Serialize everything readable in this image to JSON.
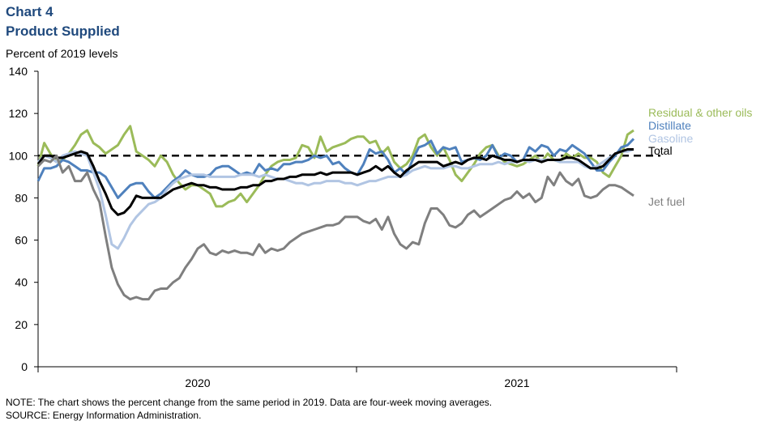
{
  "chart_data": {
    "type": "line",
    "title": "Chart 4",
    "subtitle": "Product Supplied",
    "ylabel": "Percent of 2019 levels",
    "note": "NOTE: The chart shows the percent change from the same period in 2019. Data are four-week  moving averages.",
    "source": "SOURCE: Energy Information  Administration.",
    "categories": [
      null,
      null,
      null,
      null,
      null,
      null,
      null,
      null,
      null,
      null,
      null,
      null,
      null,
      null,
      null,
      null,
      null,
      null,
      null,
      null,
      null,
      null,
      null,
      null,
      null,
      null,
      "2020",
      null,
      null,
      null,
      null,
      null,
      null,
      null,
      null,
      null,
      null,
      null,
      null,
      null,
      null,
      null,
      null,
      null,
      null,
      null,
      null,
      null,
      null,
      null,
      null,
      null,
      null,
      null,
      null,
      null,
      null,
      null,
      null,
      null,
      null,
      null,
      null,
      null,
      null,
      null,
      null,
      null,
      null,
      null,
      null,
      null,
      null,
      null,
      null,
      null,
      null,
      null,
      "2021",
      null,
      null,
      null,
      null,
      null,
      null,
      null,
      null,
      null,
      null,
      null,
      null,
      null,
      null,
      null,
      null,
      null,
      null,
      null
    ],
    "ylim": [
      0,
      140
    ],
    "yticks": [
      0,
      20,
      40,
      60,
      80,
      100,
      120,
      140
    ],
    "reference_line": 100,
    "series": [
      {
        "name": "Residual & other oils",
        "color": "#9bbb59",
        "values": [
          95,
          106,
          101,
          97,
          98,
          101,
          105,
          110,
          112,
          106,
          104,
          101,
          103,
          105,
          110,
          114,
          102,
          100,
          98,
          95,
          100,
          97,
          91,
          87,
          84,
          86,
          86,
          84,
          82,
          76,
          76,
          78,
          79,
          82,
          78,
          82,
          86,
          91,
          95,
          97,
          98,
          98,
          99,
          105,
          104,
          99,
          109,
          102,
          104,
          105,
          106,
          108,
          109,
          109,
          106,
          107,
          101,
          104,
          97,
          94,
          96,
          100,
          108,
          110,
          104,
          100,
          104,
          98,
          91,
          88,
          92,
          96,
          101,
          104,
          105,
          100,
          97,
          96,
          95,
          96,
          98,
          100,
          97,
          101,
          98,
          97,
          101,
          99,
          101,
          99,
          99,
          97,
          92,
          90,
          95,
          100,
          110,
          112
        ]
      },
      {
        "name": "Distillate",
        "color": "#4f81bd",
        "values": [
          88,
          94,
          94,
          95,
          98,
          97,
          95,
          93,
          93,
          92,
          92,
          90,
          85,
          80,
          83,
          86,
          87,
          87,
          83,
          80,
          82,
          85,
          88,
          90,
          93,
          91,
          90,
          90,
          91,
          94,
          95,
          95,
          93,
          91,
          92,
          91,
          96,
          93,
          94,
          93,
          96,
          96,
          97,
          97,
          98,
          100,
          99,
          100,
          96,
          97,
          94,
          92,
          91,
          96,
          103,
          101,
          102,
          98,
          92,
          94,
          91,
          98,
          104,
          105,
          107,
          101,
          104,
          103,
          104,
          97,
          98,
          99,
          98,
          100,
          105,
          99,
          101,
          100,
          97,
          98,
          104,
          102,
          105,
          104,
          100,
          103,
          102,
          105,
          103,
          101,
          97,
          93,
          93,
          97,
          100,
          104,
          105,
          108
        ]
      },
      {
        "name": "Gasoline",
        "color": "#b1c5e3",
        "values": [
          97,
          100,
          99,
          97,
          100,
          101,
          102,
          101,
          100,
          92,
          84,
          72,
          58,
          56,
          61,
          67,
          71,
          74,
          77,
          78,
          80,
          84,
          87,
          89,
          90,
          91,
          91,
          91,
          90,
          90,
          90,
          90,
          90,
          91,
          91,
          91,
          90,
          91,
          90,
          89,
          89,
          88,
          87,
          87,
          86,
          87,
          87,
          88,
          88,
          88,
          87,
          87,
          86,
          87,
          88,
          88,
          89,
          90,
          90,
          90,
          91,
          93,
          94,
          95,
          94,
          94,
          94,
          95,
          95,
          94,
          94,
          95,
          96,
          96,
          96,
          97,
          96,
          97,
          97,
          98,
          97,
          98,
          98,
          98,
          98,
          97,
          97,
          97,
          97,
          95,
          94,
          95,
          97,
          99,
          101,
          102,
          102,
          103
        ]
      },
      {
        "name": "Total",
        "color": "#000000",
        "values": [
          96,
          100,
          100,
          99,
          99,
          100,
          101,
          102,
          101,
          95,
          88,
          82,
          75,
          72,
          73,
          76,
          81,
          80,
          80,
          80,
          80,
          82,
          84,
          85,
          86,
          87,
          86,
          86,
          85,
          85,
          84,
          84,
          84,
          85,
          85,
          86,
          86,
          88,
          88,
          89,
          89,
          90,
          90,
          91,
          91,
          91,
          92,
          91,
          92,
          92,
          92,
          92,
          91,
          92,
          93,
          95,
          93,
          95,
          92,
          90,
          93,
          95,
          97,
          97,
          97,
          97,
          95,
          96,
          97,
          96,
          98,
          99,
          99,
          98,
          100,
          99,
          98,
          98,
          97,
          98,
          98,
          98,
          97,
          98,
          98,
          98,
          99,
          99,
          98,
          96,
          94,
          94,
          95,
          98,
          101,
          102,
          103,
          103
        ]
      },
      {
        "name": "Jet fuel",
        "color": "#7f7f7f",
        "values": [
          95,
          98,
          97,
          100,
          92,
          95,
          88,
          88,
          92,
          84,
          78,
          62,
          47,
          39,
          34,
          32,
          33,
          32,
          32,
          36,
          37,
          37,
          40,
          42,
          47,
          51,
          56,
          58,
          54,
          53,
          55,
          54,
          55,
          54,
          54,
          53,
          58,
          54,
          56,
          55,
          56,
          59,
          61,
          63,
          64,
          65,
          66,
          67,
          67,
          68,
          71,
          71,
          71,
          69,
          68,
          70,
          65,
          71,
          63,
          58,
          56,
          59,
          58,
          68,
          75,
          75,
          72,
          67,
          66,
          68,
          72,
          74,
          71,
          73,
          75,
          77,
          79,
          80,
          83,
          80,
          82,
          78,
          80,
          90,
          86,
          92,
          88,
          86,
          89,
          81,
          80,
          81,
          84,
          86,
          86,
          85,
          83,
          81
        ]
      }
    ]
  }
}
